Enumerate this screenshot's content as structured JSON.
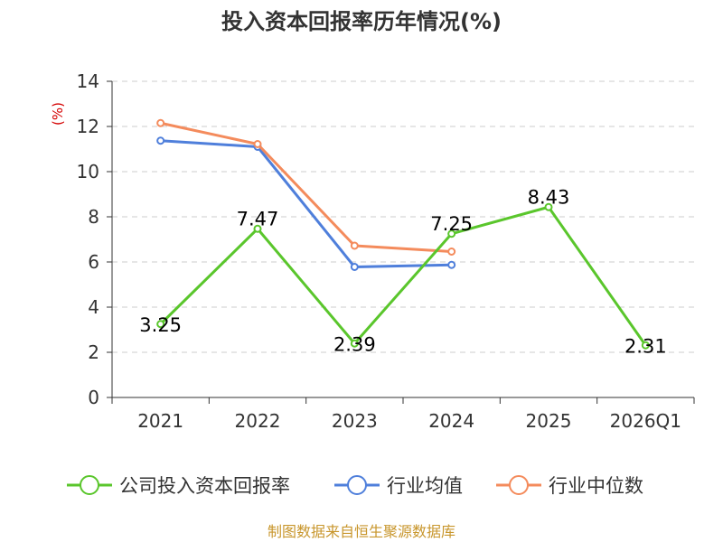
{
  "chart_data": {
    "type": "line",
    "title": "投入资本回报率历年情况(%)",
    "ylabel": "(%)",
    "xlabel": "",
    "categories": [
      "2021",
      "2022",
      "2023",
      "2024",
      "2025",
      "2026Q1"
    ],
    "ylim": [
      0,
      14
    ],
    "yticks": [
      0,
      2,
      4,
      6,
      8,
      10,
      12,
      14
    ],
    "grid": true,
    "legend_position": "bottom",
    "series": [
      {
        "name": "公司投入资本回报率",
        "color": "#5ac62c",
        "values": [
          3.25,
          7.47,
          2.39,
          7.25,
          8.43,
          2.31
        ],
        "labels": [
          "3.25",
          "7.47",
          "2.39",
          "7.25",
          "8.43",
          "2.31"
        ]
      },
      {
        "name": "行业均值",
        "color": "#4f7fdb",
        "values": [
          11.37,
          11.1,
          5.78,
          5.87,
          null,
          null
        ]
      },
      {
        "name": "行业中位数",
        "color": "#f48b5c",
        "values": [
          12.15,
          11.22,
          6.72,
          6.46,
          null,
          null
        ]
      }
    ],
    "source": "制图数据来自恒生聚源数据库"
  }
}
